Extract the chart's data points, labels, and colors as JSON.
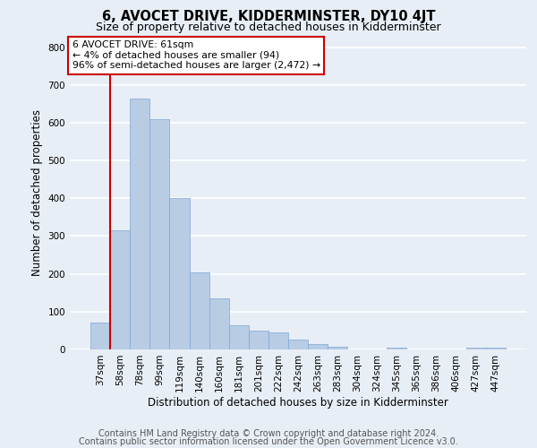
{
  "title": "6, AVOCET DRIVE, KIDDERMINSTER, DY10 4JT",
  "subtitle": "Size of property relative to detached houses in Kidderminster",
  "xlabel": "Distribution of detached houses by size in Kidderminster",
  "ylabel": "Number of detached properties",
  "categories": [
    "37sqm",
    "58sqm",
    "78sqm",
    "99sqm",
    "119sqm",
    "140sqm",
    "160sqm",
    "181sqm",
    "201sqm",
    "222sqm",
    "242sqm",
    "263sqm",
    "283sqm",
    "304sqm",
    "324sqm",
    "345sqm",
    "365sqm",
    "386sqm",
    "406sqm",
    "427sqm",
    "447sqm"
  ],
  "values": [
    70,
    315,
    665,
    610,
    400,
    205,
    135,
    65,
    50,
    45,
    25,
    15,
    8,
    0,
    0,
    5,
    0,
    0,
    0,
    5,
    5
  ],
  "bar_color": "#b8cce4",
  "bar_edge_color": "#7ca6d8",
  "annotation_title": "6 AVOCET DRIVE: 61sqm",
  "annotation_line1": "← 4% of detached houses are smaller (94)",
  "annotation_line2": "96% of semi-detached houses are larger (2,472) →",
  "annotation_box_color": "#ffffff",
  "annotation_box_edge": "#cc0000",
  "vline_color": "#cc0000",
  "vline_x": 0.5,
  "ylim": [
    0,
    830
  ],
  "yticks": [
    0,
    100,
    200,
    300,
    400,
    500,
    600,
    700,
    800
  ],
  "footer1": "Contains HM Land Registry data © Crown copyright and database right 2024.",
  "footer2": "Contains public sector information licensed under the Open Government Licence v3.0.",
  "bg_color": "#e8eef6",
  "plot_bg_color": "#e8eef6",
  "grid_color": "#ffffff",
  "title_fontsize": 10.5,
  "subtitle_fontsize": 9,
  "label_fontsize": 8.5,
  "tick_fontsize": 7.5,
  "footer_fontsize": 7,
  "ann_fontsize": 7.8
}
